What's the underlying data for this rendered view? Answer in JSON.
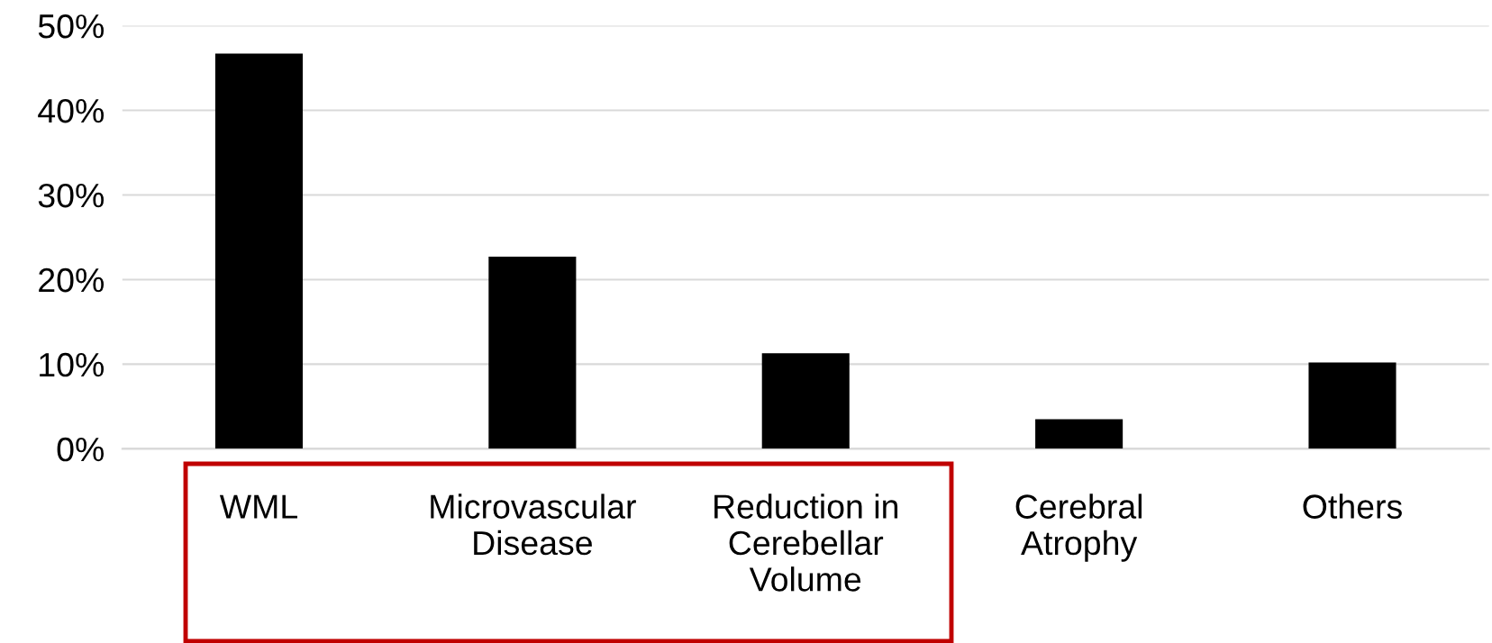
{
  "chart_data": {
    "type": "bar",
    "categories": [
      "WML",
      "Microvascular\nDisease",
      "Reduction in\nCerebellar\nVolume",
      "Cerebral\nAtrophy",
      "Others"
    ],
    "values": [
      46.7,
      22.7,
      11.3,
      3.5,
      10.2
    ],
    "color": "#000000",
    "ylim": [
      0,
      50
    ],
    "yticks": [
      {
        "value": 0,
        "label": "0%"
      },
      {
        "value": 10,
        "label": "10%"
      },
      {
        "value": 20,
        "label": "20%"
      },
      {
        "value": 30,
        "label": "30%"
      },
      {
        "value": 40,
        "label": "40%"
      },
      {
        "value": 50,
        "label": "50%"
      }
    ],
    "grid": "y",
    "legend": false
  }
}
